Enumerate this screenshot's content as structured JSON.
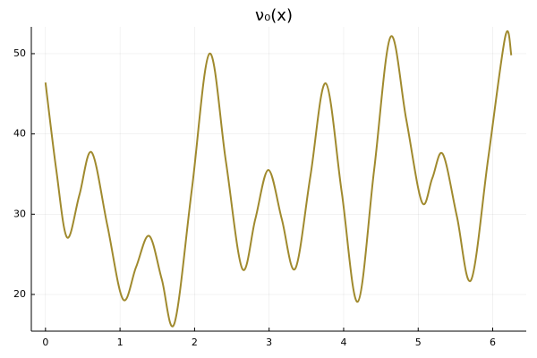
{
  "chart_data": {
    "type": "line",
    "title": "ν₀(x)",
    "x": [
      0,
      0.145,
      0.29,
      0.455,
      0.62,
      0.83,
      1.04,
      1.215,
      1.39,
      1.56,
      1.73,
      1.965,
      2.2,
      2.42,
      2.64,
      2.815,
      2.99,
      3.17,
      3.35,
      3.555,
      3.76,
      3.975,
      4.19,
      4.41,
      4.63,
      4.84,
      5.05,
      5.19,
      5.33,
      5.52,
      5.71,
      5.94,
      6.17,
      6.25
    ],
    "series": [
      {
        "color": "#a08a2e",
        "values": [
          46.4,
          35.5,
          27.1,
          32.4,
          37.7,
          28.6,
          19.4,
          23.4,
          27.3,
          21.9,
          16.4,
          33.2,
          50.0,
          36.6,
          23.2,
          29.4,
          35.5,
          29.4,
          23.2,
          34.8,
          46.3,
          32.7,
          19.1,
          35.6,
          52.1,
          41.8,
          31.5,
          34.5,
          37.5,
          29.7,
          21.8,
          37.0,
          52.2,
          49.8
        ]
      }
    ],
    "xlim": [
      -0.19,
      6.45
    ],
    "ylim": [
      15.43,
      53.34
    ],
    "xticks": [
      0,
      1,
      2,
      3,
      4,
      5,
      6
    ],
    "yticks": [
      20,
      30,
      40,
      50
    ],
    "grid": true
  }
}
